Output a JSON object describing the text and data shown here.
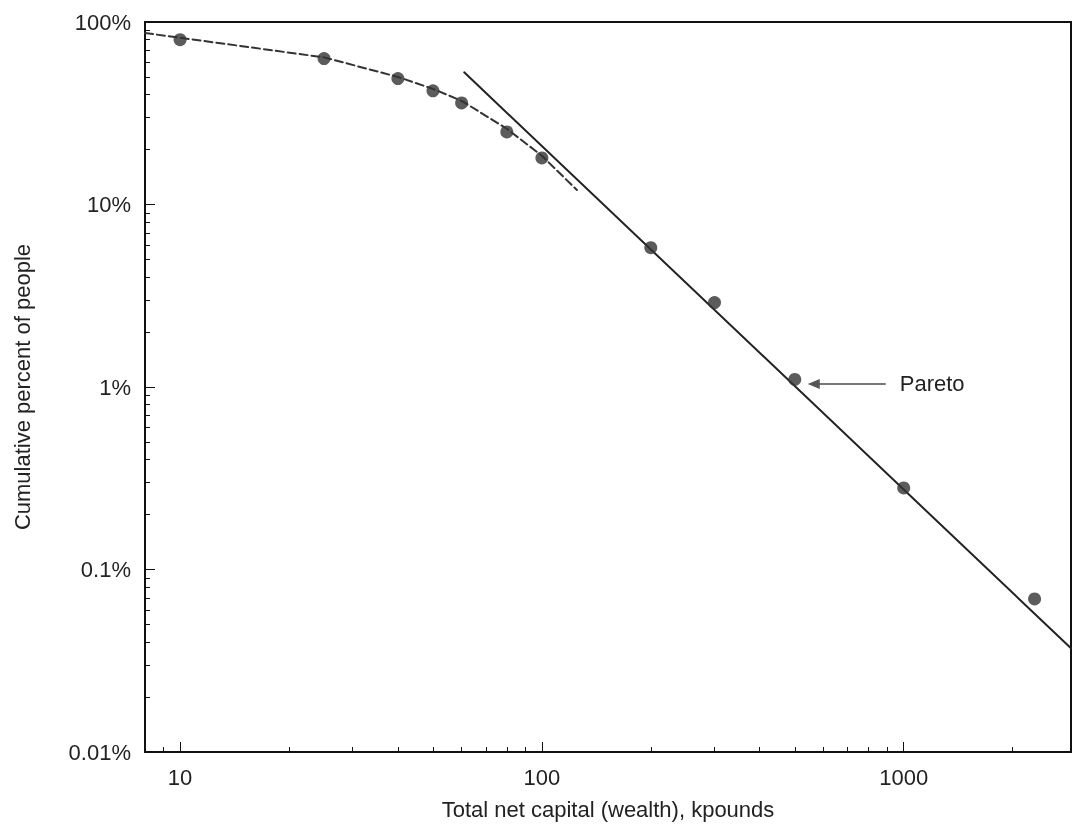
{
  "chart_data": {
    "type": "scatter",
    "xlabel": "Total net capital (wealth), kpounds",
    "ylabel": "Cumulative percent of people",
    "log": "xy",
    "xlim": [
      8,
      2900
    ],
    "xticks": [
      10,
      100,
      1000
    ],
    "ylim": [
      0.01,
      100
    ],
    "yticks": [
      {
        "value": 0.01,
        "label": "0.01%"
      },
      {
        "value": 0.1,
        "label": "0.1%"
      },
      {
        "value": 1,
        "label": "1%"
      },
      {
        "value": 10,
        "label": "10%"
      },
      {
        "value": 100,
        "label": "100%"
      }
    ],
    "grid": false,
    "series": [
      {
        "color": "#333333",
        "marker": "circle",
        "x": [
          10,
          25,
          40,
          50,
          60,
          80,
          100,
          200,
          300,
          500,
          1000,
          2300
        ],
        "values": [
          80,
          63,
          49,
          42,
          36,
          25,
          18,
          5.8,
          2.9,
          1.1,
          0.28,
          0.069
        ]
      },
      {
        "type": "line",
        "color": "#333333",
        "line_style": "dashed",
        "marker": "none",
        "x": [
          8,
          10,
          25,
          40,
          50,
          60,
          80,
          100,
          125
        ],
        "values": [
          87,
          82,
          64,
          50,
          43,
          37,
          26,
          18.5,
          12
        ]
      },
      {
        "type": "line",
        "color": "#222222",
        "line_style": "solid",
        "marker": "none",
        "x": [
          61,
          2900
        ],
        "values": [
          53,
          0.037
        ]
      }
    ],
    "annotations": [
      "Pareto"
    ]
  }
}
